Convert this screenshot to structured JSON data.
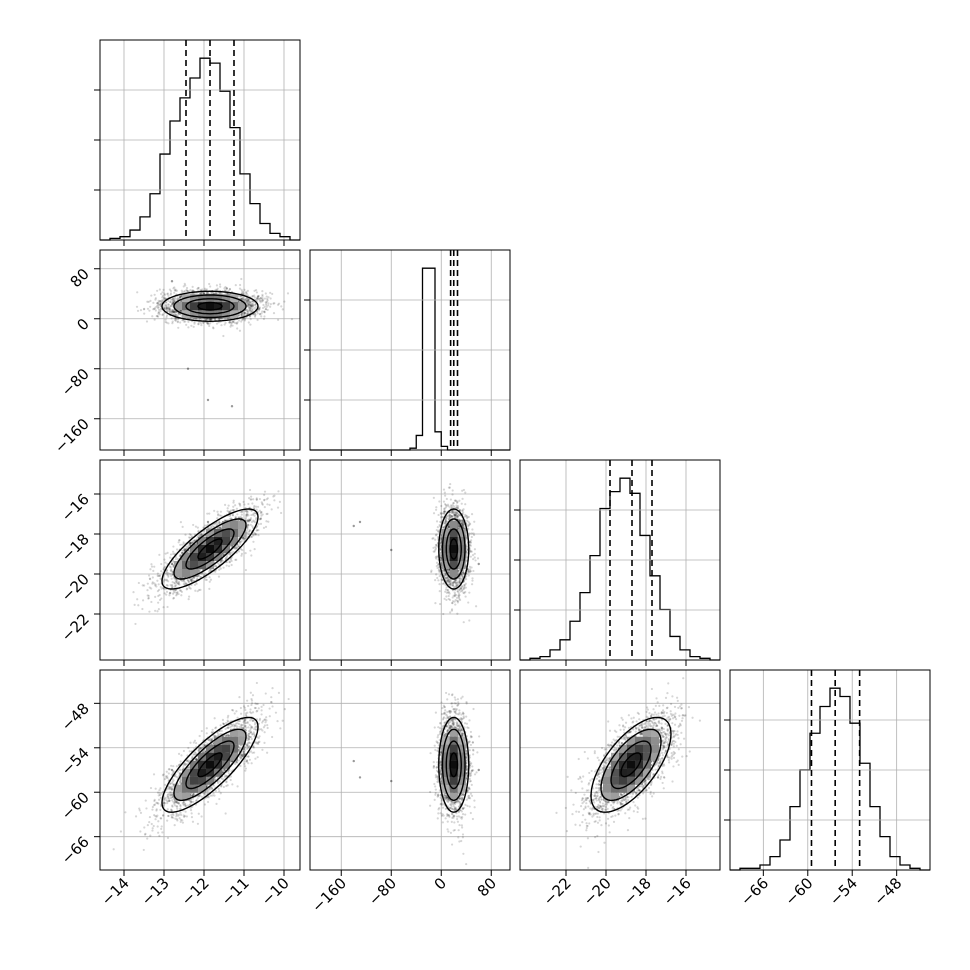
{
  "chart_data": {
    "type": "corner",
    "parameters": [
      {
        "axis_range": [
          -14.6,
          -9.6
        ],
        "ticks": [
          -14,
          -13,
          -12,
          -11,
          -10
        ],
        "tick_labels": [
          "−14",
          "−13",
          "−12",
          "−11",
          "−10"
        ],
        "quantiles": [
          -12.45,
          -11.85,
          -11.25
        ],
        "histogram": [
          0,
          1,
          2,
          6,
          14,
          28,
          52,
          72,
          86,
          98,
          110,
          107,
          90,
          68,
          40,
          22,
          10,
          4,
          2,
          0
        ]
      },
      {
        "axis_range": [
          -210,
          110
        ],
        "ticks": [
          -160,
          -80,
          0,
          80
        ],
        "tick_labels": [
          "−160",
          "−80",
          "0",
          "80"
        ],
        "quantiles": [
          15,
          20,
          26
        ],
        "histogram": [
          0,
          0,
          0,
          0,
          0,
          0,
          0,
          0,
          0,
          0,
          0,
          0,
          0,
          0,
          0,
          0,
          1,
          8,
          100,
          100,
          10,
          2,
          0,
          0,
          0,
          0,
          0,
          0,
          0,
          0,
          0,
          0
        ],
        "hist_ylim_top": 110
      },
      {
        "axis_range": [
          -24.3,
          -14.3
        ],
        "ticks": [
          -22,
          -20,
          -18,
          -16
        ],
        "tick_labels": [
          "−22",
          "−20",
          "−18",
          "−16"
        ],
        "quantiles": [
          -19.8,
          -18.7,
          -17.7
        ],
        "histogram": [
          0,
          1,
          2,
          6,
          12,
          23,
          40,
          62,
          90,
          100,
          108,
          99,
          74,
          50,
          30,
          14,
          6,
          2,
          1,
          0
        ]
      },
      {
        "axis_range": [
          -70.5,
          -43.5
        ],
        "ticks": [
          -66,
          -60,
          -54,
          -48
        ],
        "tick_labels": [
          "−66",
          "−60",
          "−54",
          "−48"
        ],
        "quantiles": [
          -59.5,
          -56.3,
          -53.0
        ],
        "histogram": [
          0,
          1,
          1,
          3,
          8,
          18,
          38,
          60,
          82,
          98,
          109,
          104,
          88,
          64,
          38,
          20,
          8,
          3,
          1,
          0
        ]
      }
    ],
    "samples": {
      "mean": [
        -11.85,
        20,
        -18.75,
        -56.3
      ],
      "sd": [
        0.6,
        12,
        1.0,
        3.2
      ],
      "corr": [
        [
          0,
          0,
          0.8,
          0.8
        ],
        [
          0,
          0,
          0,
          0
        ],
        [
          0.8,
          0,
          0,
          0.65
        ],
        [
          0.8,
          0,
          0.65,
          0
        ]
      ],
      "outliers": [
        [
          -11.3,
          -140,
          -17.6,
          -55.8
        ],
        [
          -12.4,
          -80,
          -18.8,
          -58.5
        ],
        [
          -11.9,
          -130,
          -17.4,
          -58.0
        ],
        [
          -12.8,
          60,
          -19.5,
          -57.0
        ]
      ]
    }
  }
}
